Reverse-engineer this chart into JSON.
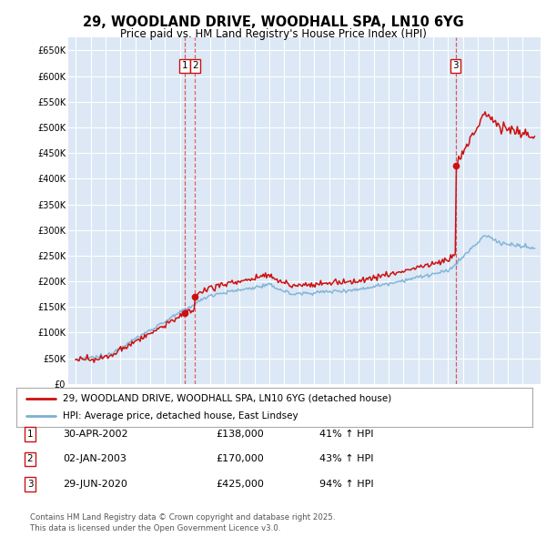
{
  "title": "29, WOODLAND DRIVE, WOODHALL SPA, LN10 6YG",
  "subtitle": "Price paid vs. HM Land Registry's House Price Index (HPI)",
  "ylim": [
    0,
    675000
  ],
  "xlim_start": 1994.5,
  "xlim_end": 2026.2,
  "plot_bg_color": "#dce8f5",
  "legend_line1": "29, WOODLAND DRIVE, WOODHALL SPA, LN10 6YG (detached house)",
  "legend_line2": "HPI: Average price, detached house, East Lindsey",
  "transactions": [
    {
      "num": 1,
      "date": "30-APR-2002",
      "price": 138000,
      "pct": "41% ↑ HPI",
      "year": 2002.33
    },
    {
      "num": 2,
      "date": "02-JAN-2003",
      "price": 170000,
      "pct": "43% ↑ HPI",
      "year": 2003.02
    },
    {
      "num": 3,
      "date": "29-JUN-2020",
      "price": 425000,
      "pct": "94% ↑ HPI",
      "year": 2020.49
    }
  ],
  "footer": "Contains HM Land Registry data © Crown copyright and database right 2025.\nThis data is licensed under the Open Government Licence v3.0.",
  "red_color": "#cc1111",
  "blue_color": "#7bafd4"
}
